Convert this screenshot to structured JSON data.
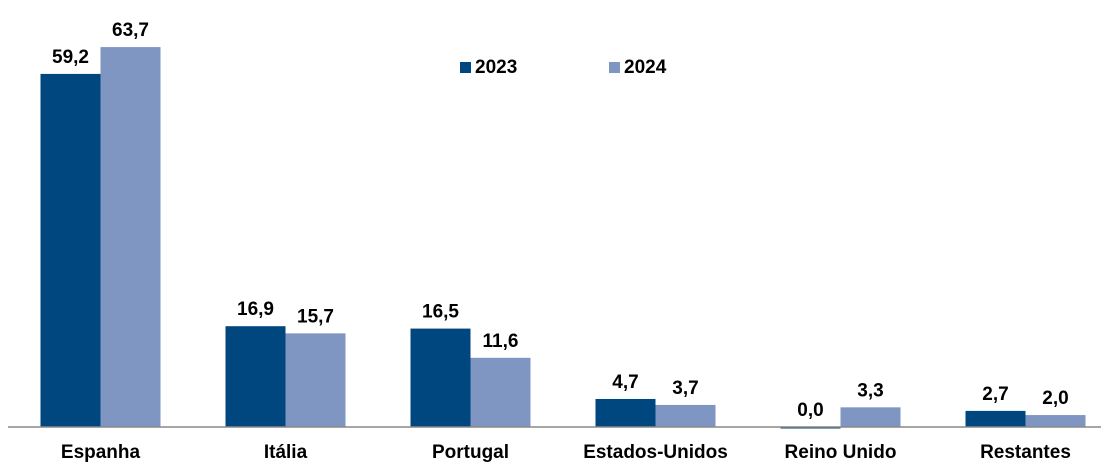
{
  "chart_data": {
    "type": "bar",
    "categories": [
      "Espanha",
      "Itália",
      "Portugal",
      "Estados-Unidos",
      "Reino Unido",
      "Restantes"
    ],
    "series": [
      {
        "name": "2023",
        "color": "#00467f",
        "values": [
          59.2,
          16.9,
          16.5,
          4.7,
          0.0,
          2.7
        ],
        "value_labels": [
          "59,2",
          "16,9",
          "16,5",
          "4,7",
          "0,0",
          "2,7"
        ]
      },
      {
        "name": "2024",
        "color": "#7f96c2",
        "values": [
          63.7,
          15.7,
          11.6,
          3.7,
          3.3,
          2.0
        ],
        "value_labels": [
          "63,7",
          "15,7",
          "11,6",
          "3,7",
          "3,3",
          "2,0"
        ]
      }
    ],
    "ylim": [
      0,
      70
    ],
    "legend": "top"
  }
}
